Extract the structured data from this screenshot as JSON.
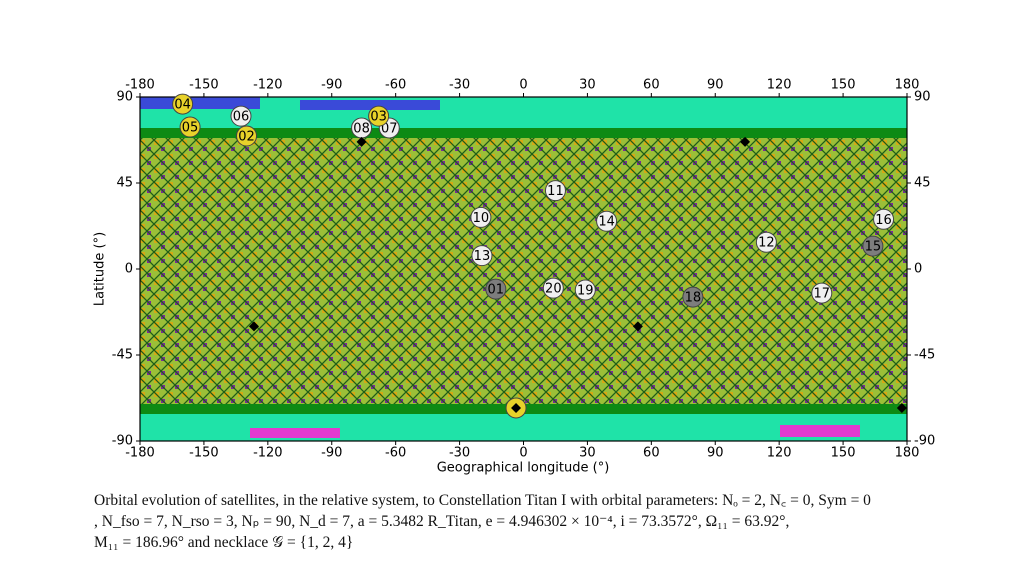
{
  "chart_data": {
    "type": "scatter",
    "xlabel": "Geographical longitude (°)",
    "ylabel": "Latitude (°)",
    "xlim": [
      -180,
      180
    ],
    "ylim": [
      -90,
      90
    ],
    "xticks": [
      -180,
      -150,
      -120,
      -90,
      -60,
      -30,
      0,
      30,
      60,
      90,
      120,
      150,
      180
    ],
    "yticks": [
      -90,
      -45,
      0,
      45,
      90
    ],
    "series": [
      {
        "color": "#f0f0f0",
        "marker": "circle",
        "labels": [
          "06",
          "08",
          "07",
          "11",
          "10",
          "14",
          "13",
          "12",
          "16",
          "20",
          "19",
          "17"
        ],
        "x": [
          -132.6,
          -76,
          -63,
          15,
          -20,
          39,
          -19.5,
          114,
          169,
          14,
          29,
          140
        ],
        "values": [
          80,
          73.8,
          73.8,
          41,
          27,
          25,
          7,
          14,
          26,
          -10,
          -11,
          -12.6
        ]
      },
      {
        "color": "#e8d22a",
        "marker": "circle",
        "labels": [
          "04",
          "05",
          "02",
          "03",
          null
        ],
        "x": [
          -160,
          -156.5,
          -130,
          -68,
          -3.5
        ],
        "values": [
          86.3,
          74.3,
          69.6,
          80,
          -72.7
        ]
      },
      {
        "color": "#7d7d7d",
        "marker": "circle",
        "labels": [
          "01",
          "18",
          "15"
        ],
        "x": [
          -13,
          79.5,
          164
        ],
        "values": [
          -10.5,
          -14.7,
          12
        ]
      },
      {
        "color": "#000000",
        "marker": "diamond",
        "x": [
          -76,
          104,
          -126.5,
          53.7,
          177.6,
          -3.5
        ],
        "values": [
          66.5,
          66.5,
          -30,
          -30,
          -72.7,
          -72.7
        ]
      }
    ]
  },
  "caption": [
    "Orbital evolution of satellites, in the relative system, to Constellation Titan I with orbital parameters: Nₒ = 2, N꜀ = 0, Sym = 0",
    ", N_fso = 7, N_rso = 3, Nₚ = 90, N_d = 7, a = 5.3482 R_Titan, e = 4.946302 × 10⁻⁴, i = 73.3572°, Ω₁₁ = 63.92°,",
    "M₁₁ = 186.96° and necklace 𝒢 = {1, 2, 4}"
  ]
}
